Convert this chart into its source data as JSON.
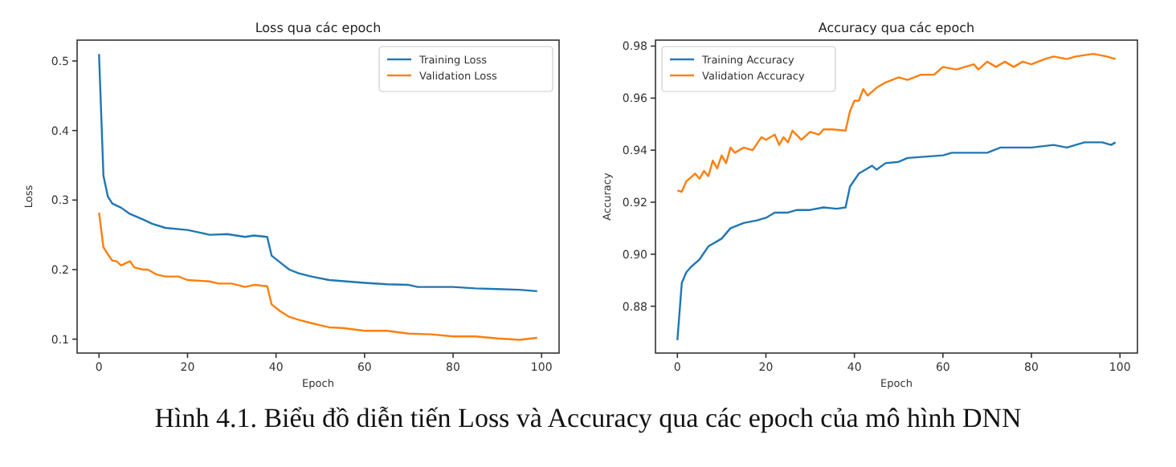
{
  "chart_data": [
    {
      "type": "line",
      "title": "Loss qua các epoch",
      "xlabel": "Epoch",
      "ylabel": "Loss",
      "xlim": [
        -4.95,
        103.95
      ],
      "ylim": [
        0.08,
        0.53
      ],
      "xticks": [
        0,
        20,
        40,
        60,
        80,
        100
      ],
      "yticks": [
        0.1,
        0.2,
        0.3,
        0.4,
        0.5
      ],
      "legend": "top right",
      "grid": false,
      "annotations": [
        "Hình 4.1. Biểu đồ diễn tiến Loss và Accuracy qua các epoch của mô hình DNN"
      ],
      "series": [
        {
          "name": "Training Loss",
          "color": "#1f77b4",
          "x": [
            0,
            1,
            2,
            3,
            5,
            7,
            10,
            12,
            15,
            20,
            23,
            25,
            29,
            33,
            35,
            38,
            39,
            41,
            43,
            45,
            48,
            52,
            60,
            65,
            70,
            72,
            80,
            85,
            90,
            95,
            99
          ],
          "values": [
            0.51,
            0.335,
            0.305,
            0.295,
            0.289,
            0.28,
            0.272,
            0.266,
            0.26,
            0.257,
            0.253,
            0.25,
            0.251,
            0.247,
            0.249,
            0.247,
            0.22,
            0.21,
            0.2,
            0.195,
            0.19,
            0.185,
            0.181,
            0.179,
            0.178,
            0.175,
            0.175,
            0.173,
            0.172,
            0.171,
            0.169
          ]
        },
        {
          "name": "Validation Loss",
          "color": "#ff7f0e",
          "x": [
            0,
            1,
            2,
            3,
            4,
            5,
            6,
            7,
            8,
            10,
            11,
            13,
            15,
            18,
            20,
            25,
            27,
            30,
            33,
            35,
            38,
            39,
            41,
            43,
            45,
            48,
            50,
            52,
            55,
            60,
            65,
            70,
            75,
            80,
            85,
            90,
            95,
            99
          ],
          "values": [
            0.282,
            0.232,
            0.222,
            0.213,
            0.212,
            0.206,
            0.209,
            0.212,
            0.203,
            0.2,
            0.2,
            0.193,
            0.19,
            0.19,
            0.185,
            0.183,
            0.18,
            0.18,
            0.175,
            0.178,
            0.176,
            0.15,
            0.14,
            0.132,
            0.128,
            0.123,
            0.12,
            0.117,
            0.116,
            0.112,
            0.112,
            0.108,
            0.107,
            0.104,
            0.104,
            0.101,
            0.099,
            0.102
          ]
        }
      ]
    },
    {
      "type": "line",
      "title": "Accuracy qua các epoch",
      "xlabel": "Epoch",
      "ylabel": "Accuracy",
      "xlim": [
        -4.95,
        103.95
      ],
      "ylim": [
        0.862,
        0.9823
      ],
      "xticks": [
        0,
        20,
        40,
        60,
        80,
        100
      ],
      "yticks": [
        {
          "value": 0.88,
          "label": "0.88"
        },
        {
          "value": 0.9,
          "label": "0.90"
        },
        {
          "value": 0.92,
          "label": "0.92"
        },
        {
          "value": 0.94,
          "label": "0.94"
        },
        {
          "value": 0.96,
          "label": "0.96"
        },
        {
          "value": 0.98,
          "label": "0.98"
        }
      ],
      "legend": "top left",
      "grid": false,
      "series": [
        {
          "name": "Training Accuracy",
          "color": "#1f77b4",
          "x": [
            0,
            1,
            2,
            3,
            5,
            7,
            10,
            12,
            15,
            18,
            20,
            22,
            25,
            27,
            30,
            33,
            36,
            38,
            39,
            41,
            44,
            45,
            47,
            50,
            52,
            60,
            62,
            70,
            73,
            80,
            85,
            88,
            92,
            96,
            98,
            99
          ],
          "values": [
            0.867,
            0.889,
            0.893,
            0.895,
            0.898,
            0.903,
            0.906,
            0.91,
            0.912,
            0.913,
            0.914,
            0.916,
            0.916,
            0.917,
            0.917,
            0.918,
            0.9175,
            0.918,
            0.926,
            0.931,
            0.934,
            0.9325,
            0.935,
            0.9355,
            0.937,
            0.938,
            0.939,
            0.939,
            0.941,
            0.941,
            0.942,
            0.941,
            0.943,
            0.943,
            0.942,
            0.943
          ]
        },
        {
          "name": "Validation Accuracy",
          "color": "#ff7f0e",
          "x": [
            0,
            1,
            2,
            4,
            5,
            6,
            7,
            8,
            9,
            10,
            11,
            12,
            13,
            15,
            17,
            19,
            20,
            22,
            23,
            24,
            25,
            26,
            28,
            30,
            32,
            33,
            35,
            38,
            39,
            40,
            41,
            42,
            43,
            45,
            47,
            50,
            52,
            55,
            58,
            60,
            63,
            67,
            68,
            70,
            72,
            74,
            76,
            78,
            80,
            83,
            85,
            88,
            90,
            94,
            97,
            99
          ],
          "values": [
            0.9245,
            0.924,
            0.928,
            0.931,
            0.929,
            0.932,
            0.93,
            0.936,
            0.933,
            0.938,
            0.935,
            0.941,
            0.939,
            0.941,
            0.94,
            0.945,
            0.944,
            0.946,
            0.942,
            0.945,
            0.943,
            0.9475,
            0.944,
            0.947,
            0.946,
            0.948,
            0.948,
            0.9475,
            0.955,
            0.959,
            0.959,
            0.9635,
            0.961,
            0.964,
            0.966,
            0.968,
            0.967,
            0.969,
            0.969,
            0.972,
            0.971,
            0.973,
            0.971,
            0.974,
            0.972,
            0.974,
            0.972,
            0.974,
            0.973,
            0.975,
            0.976,
            0.975,
            0.976,
            0.977,
            0.976,
            0.975
          ]
        }
      ]
    }
  ]
}
